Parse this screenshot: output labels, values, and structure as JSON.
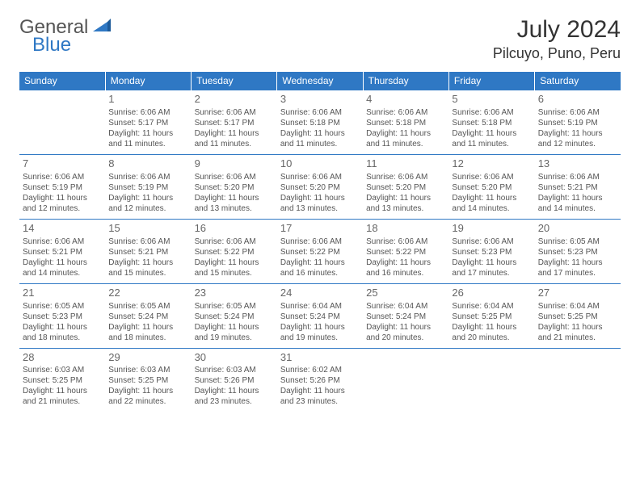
{
  "logo": {
    "word1": "General",
    "word2": "Blue"
  },
  "title": "July 2024",
  "location": "Pilcuyo, Puno, Peru",
  "colors": {
    "header_bg": "#2f78c4",
    "header_text": "#ffffff",
    "text": "#555555",
    "rule": "#2f78c4",
    "page_bg": "#ffffff"
  },
  "typography": {
    "title_fontsize": 30,
    "location_fontsize": 18,
    "dayheader_fontsize": 12,
    "daynum_fontsize": 13,
    "body_fontsize": 10
  },
  "day_headers": [
    "Sunday",
    "Monday",
    "Tuesday",
    "Wednesday",
    "Thursday",
    "Friday",
    "Saturday"
  ],
  "weeks": [
    [
      null,
      {
        "n": "1",
        "sr": "Sunrise: 6:06 AM",
        "ss": "Sunset: 5:17 PM",
        "d1": "Daylight: 11 hours",
        "d2": "and 11 minutes."
      },
      {
        "n": "2",
        "sr": "Sunrise: 6:06 AM",
        "ss": "Sunset: 5:17 PM",
        "d1": "Daylight: 11 hours",
        "d2": "and 11 minutes."
      },
      {
        "n": "3",
        "sr": "Sunrise: 6:06 AM",
        "ss": "Sunset: 5:18 PM",
        "d1": "Daylight: 11 hours",
        "d2": "and 11 minutes."
      },
      {
        "n": "4",
        "sr": "Sunrise: 6:06 AM",
        "ss": "Sunset: 5:18 PM",
        "d1": "Daylight: 11 hours",
        "d2": "and 11 minutes."
      },
      {
        "n": "5",
        "sr": "Sunrise: 6:06 AM",
        "ss": "Sunset: 5:18 PM",
        "d1": "Daylight: 11 hours",
        "d2": "and 11 minutes."
      },
      {
        "n": "6",
        "sr": "Sunrise: 6:06 AM",
        "ss": "Sunset: 5:19 PM",
        "d1": "Daylight: 11 hours",
        "d2": "and 12 minutes."
      }
    ],
    [
      {
        "n": "7",
        "sr": "Sunrise: 6:06 AM",
        "ss": "Sunset: 5:19 PM",
        "d1": "Daylight: 11 hours",
        "d2": "and 12 minutes."
      },
      {
        "n": "8",
        "sr": "Sunrise: 6:06 AM",
        "ss": "Sunset: 5:19 PM",
        "d1": "Daylight: 11 hours",
        "d2": "and 12 minutes."
      },
      {
        "n": "9",
        "sr": "Sunrise: 6:06 AM",
        "ss": "Sunset: 5:20 PM",
        "d1": "Daylight: 11 hours",
        "d2": "and 13 minutes."
      },
      {
        "n": "10",
        "sr": "Sunrise: 6:06 AM",
        "ss": "Sunset: 5:20 PM",
        "d1": "Daylight: 11 hours",
        "d2": "and 13 minutes."
      },
      {
        "n": "11",
        "sr": "Sunrise: 6:06 AM",
        "ss": "Sunset: 5:20 PM",
        "d1": "Daylight: 11 hours",
        "d2": "and 13 minutes."
      },
      {
        "n": "12",
        "sr": "Sunrise: 6:06 AM",
        "ss": "Sunset: 5:20 PM",
        "d1": "Daylight: 11 hours",
        "d2": "and 14 minutes."
      },
      {
        "n": "13",
        "sr": "Sunrise: 6:06 AM",
        "ss": "Sunset: 5:21 PM",
        "d1": "Daylight: 11 hours",
        "d2": "and 14 minutes."
      }
    ],
    [
      {
        "n": "14",
        "sr": "Sunrise: 6:06 AM",
        "ss": "Sunset: 5:21 PM",
        "d1": "Daylight: 11 hours",
        "d2": "and 14 minutes."
      },
      {
        "n": "15",
        "sr": "Sunrise: 6:06 AM",
        "ss": "Sunset: 5:21 PM",
        "d1": "Daylight: 11 hours",
        "d2": "and 15 minutes."
      },
      {
        "n": "16",
        "sr": "Sunrise: 6:06 AM",
        "ss": "Sunset: 5:22 PM",
        "d1": "Daylight: 11 hours",
        "d2": "and 15 minutes."
      },
      {
        "n": "17",
        "sr": "Sunrise: 6:06 AM",
        "ss": "Sunset: 5:22 PM",
        "d1": "Daylight: 11 hours",
        "d2": "and 16 minutes."
      },
      {
        "n": "18",
        "sr": "Sunrise: 6:06 AM",
        "ss": "Sunset: 5:22 PM",
        "d1": "Daylight: 11 hours",
        "d2": "and 16 minutes."
      },
      {
        "n": "19",
        "sr": "Sunrise: 6:06 AM",
        "ss": "Sunset: 5:23 PM",
        "d1": "Daylight: 11 hours",
        "d2": "and 17 minutes."
      },
      {
        "n": "20",
        "sr": "Sunrise: 6:05 AM",
        "ss": "Sunset: 5:23 PM",
        "d1": "Daylight: 11 hours",
        "d2": "and 17 minutes."
      }
    ],
    [
      {
        "n": "21",
        "sr": "Sunrise: 6:05 AM",
        "ss": "Sunset: 5:23 PM",
        "d1": "Daylight: 11 hours",
        "d2": "and 18 minutes."
      },
      {
        "n": "22",
        "sr": "Sunrise: 6:05 AM",
        "ss": "Sunset: 5:24 PM",
        "d1": "Daylight: 11 hours",
        "d2": "and 18 minutes."
      },
      {
        "n": "23",
        "sr": "Sunrise: 6:05 AM",
        "ss": "Sunset: 5:24 PM",
        "d1": "Daylight: 11 hours",
        "d2": "and 19 minutes."
      },
      {
        "n": "24",
        "sr": "Sunrise: 6:04 AM",
        "ss": "Sunset: 5:24 PM",
        "d1": "Daylight: 11 hours",
        "d2": "and 19 minutes."
      },
      {
        "n": "25",
        "sr": "Sunrise: 6:04 AM",
        "ss": "Sunset: 5:24 PM",
        "d1": "Daylight: 11 hours",
        "d2": "and 20 minutes."
      },
      {
        "n": "26",
        "sr": "Sunrise: 6:04 AM",
        "ss": "Sunset: 5:25 PM",
        "d1": "Daylight: 11 hours",
        "d2": "and 20 minutes."
      },
      {
        "n": "27",
        "sr": "Sunrise: 6:04 AM",
        "ss": "Sunset: 5:25 PM",
        "d1": "Daylight: 11 hours",
        "d2": "and 21 minutes."
      }
    ],
    [
      {
        "n": "28",
        "sr": "Sunrise: 6:03 AM",
        "ss": "Sunset: 5:25 PM",
        "d1": "Daylight: 11 hours",
        "d2": "and 21 minutes."
      },
      {
        "n": "29",
        "sr": "Sunrise: 6:03 AM",
        "ss": "Sunset: 5:25 PM",
        "d1": "Daylight: 11 hours",
        "d2": "and 22 minutes."
      },
      {
        "n": "30",
        "sr": "Sunrise: 6:03 AM",
        "ss": "Sunset: 5:26 PM",
        "d1": "Daylight: 11 hours",
        "d2": "and 23 minutes."
      },
      {
        "n": "31",
        "sr": "Sunrise: 6:02 AM",
        "ss": "Sunset: 5:26 PM",
        "d1": "Daylight: 11 hours",
        "d2": "and 23 minutes."
      },
      null,
      null,
      null
    ]
  ]
}
